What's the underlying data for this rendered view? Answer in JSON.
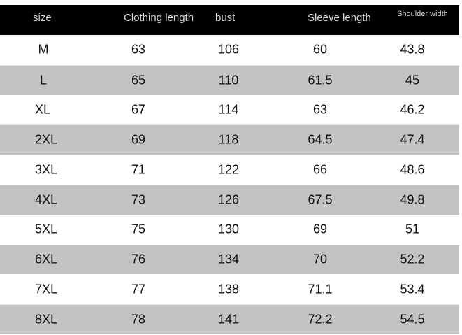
{
  "headers": [
    "size",
    "Clothing length",
    "bust",
    "Sleeve length",
    "Shoulder width"
  ],
  "rows": [
    [
      "M",
      "63",
      "106",
      "60",
      "43.8"
    ],
    [
      "L",
      "65",
      "110",
      "61.5",
      "45"
    ],
    [
      "XL",
      "67",
      "114",
      "63",
      "46.2"
    ],
    [
      "2XL",
      "69",
      "118",
      "64.5",
      "47.4"
    ],
    [
      "3XL",
      "71",
      "122",
      "66",
      "48.6"
    ],
    [
      "4XL",
      "73",
      "126",
      "67.5",
      "49.8"
    ],
    [
      "5XL",
      "75",
      "130",
      "69",
      "51"
    ],
    [
      "6XL",
      "76",
      "134",
      "70",
      "52.2"
    ],
    [
      "7XL",
      "77",
      "138",
      "71.1",
      "53.4"
    ],
    [
      "8XL",
      "78",
      "141",
      "72.2",
      "54.5"
    ]
  ],
  "colors": {
    "header_bg": "#000000",
    "stripe": "#c3c3c3"
  }
}
